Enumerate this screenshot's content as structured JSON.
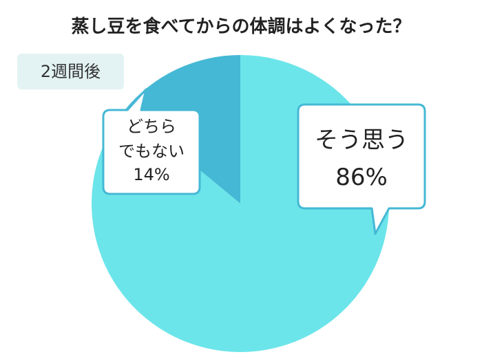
{
  "chart_data": {
    "type": "pie",
    "title": "蒸し豆を食べてからの体調はよくなった？",
    "subtitle": "2週間後",
    "categories": [
      "そう思う",
      "どちら\nでもない"
    ],
    "values": [
      86,
      14
    ],
    "value_labels": [
      "86%",
      "14%"
    ],
    "colors": [
      "#6ce5ea",
      "#45b8d5"
    ]
  }
}
